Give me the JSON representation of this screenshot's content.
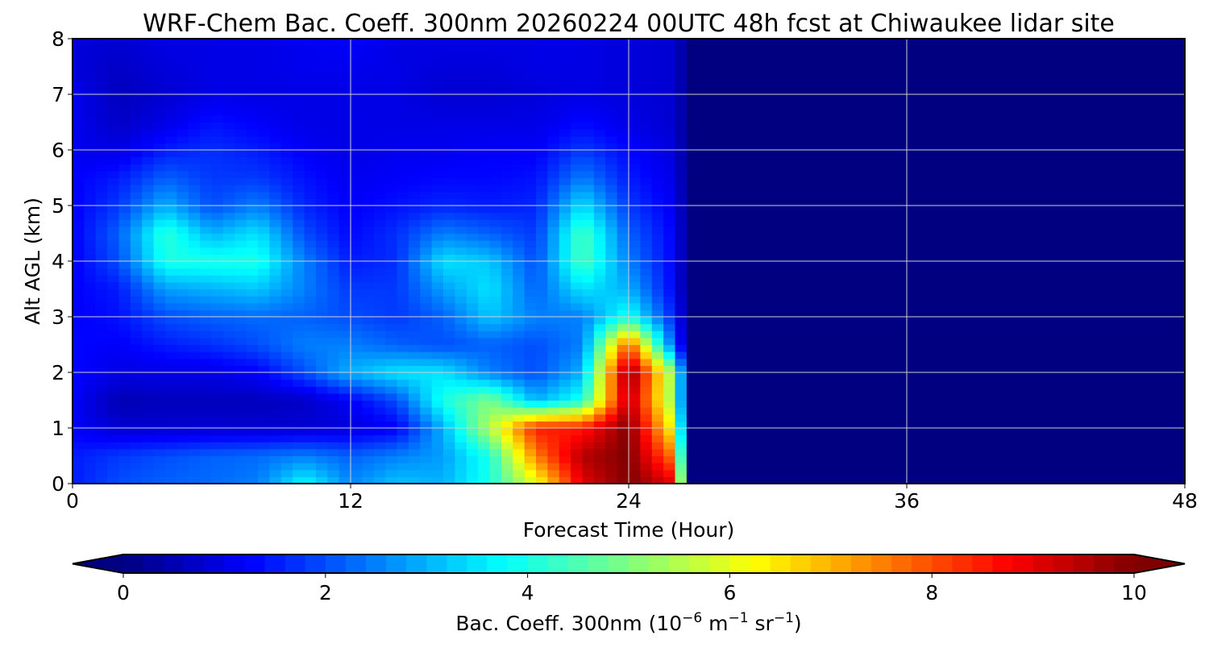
{
  "chart_data": {
    "type": "heatmap",
    "title": "WRF-Chem Bac. Coeff. 300nm  20260224 00UTC 48h fcst at Chiwaukee lidar site",
    "xlabel": "Forecast Time (Hour)",
    "ylabel": "Alt AGL (km)",
    "xlim": [
      0,
      48
    ],
    "ylim": [
      0,
      8
    ],
    "xticks": [
      "0",
      "12",
      "24",
      "36",
      "48"
    ],
    "yticks": [
      "0",
      "1",
      "2",
      "3",
      "4",
      "5",
      "6",
      "7",
      "8"
    ],
    "grid": true,
    "colormap": "jet",
    "colorbar": {
      "label_main": "Bac. Coeff. 300nm  (10",
      "label_exp1": "−6",
      "label_mid": " m",
      "label_exp2": "−1",
      "label_mid2": " sr",
      "label_exp3": "−1",
      "label_end": ")",
      "range": [
        0,
        10
      ],
      "ticks": [
        "0",
        "2",
        "4",
        "6",
        "8",
        "10"
      ],
      "extend": "both",
      "placement": "bottom"
    },
    "x_hours": [
      0,
      2,
      4,
      6,
      8,
      10,
      12,
      14,
      16,
      18,
      20,
      22,
      24,
      26,
      26.6,
      48
    ],
    "y_km": [
      0,
      0.5,
      1,
      1.5,
      2,
      2.5,
      3,
      3.5,
      4,
      4.5,
      5,
      5.5,
      6,
      6.5,
      7,
      7.5,
      8
    ],
    "values": [
      [
        1.5,
        2,
        2.2,
        2.3,
        2.5,
        3.8,
        2.6,
        3.2,
        3,
        4,
        6,
        9,
        10,
        9,
        0,
        0
      ],
      [
        1.5,
        1.8,
        2,
        2.2,
        2.3,
        2.5,
        2.2,
        2.5,
        2.8,
        4,
        7.5,
        9.5,
        10,
        7.5,
        0,
        0
      ],
      [
        1.2,
        0.8,
        0.8,
        0.8,
        0.8,
        0.8,
        0.9,
        1.2,
        3,
        5.5,
        8.5,
        8.5,
        10,
        6,
        0,
        0
      ],
      [
        1.2,
        0.5,
        0.6,
        0.6,
        0.6,
        0.7,
        1.2,
        2,
        4,
        5,
        3,
        4,
        9.5,
        5,
        0,
        0
      ],
      [
        1.3,
        1,
        1,
        1,
        1.2,
        2,
        3,
        3.5,
        3.5,
        2.5,
        2,
        3,
        10,
        5,
        0,
        0
      ],
      [
        1.3,
        1.2,
        1.5,
        1.7,
        2,
        2.5,
        2.5,
        2.2,
        2,
        2.2,
        2,
        2.5,
        8,
        2,
        0,
        0
      ],
      [
        1.2,
        1.4,
        2,
        2.2,
        2.3,
        2.2,
        2,
        1.8,
        2.2,
        3.2,
        2.5,
        2.5,
        4,
        1.5,
        0,
        0
      ],
      [
        1.2,
        1.5,
        2.8,
        3,
        3.2,
        2.5,
        1.8,
        1.8,
        2.8,
        3.5,
        2.2,
        3.5,
        3,
        1.2,
        0,
        0
      ],
      [
        1.2,
        2,
        4,
        4,
        4,
        2.5,
        1.5,
        1.7,
        3.5,
        3.2,
        2,
        4.5,
        2.5,
        1.2,
        0,
        0
      ],
      [
        1.2,
        2.2,
        4.2,
        3,
        3.5,
        2,
        1.3,
        1.7,
        2.5,
        2.2,
        1.8,
        4.5,
        2.2,
        1.2,
        0,
        0
      ],
      [
        1.2,
        1.8,
        3,
        2,
        2.5,
        1.6,
        1.2,
        1.4,
        1.6,
        1.5,
        1.6,
        3.5,
        1.8,
        1.1,
        0,
        0
      ],
      [
        1.2,
        1.5,
        2.2,
        1.8,
        1.8,
        1.4,
        1.1,
        1.2,
        1.3,
        1.3,
        1.4,
        2.5,
        1.5,
        1,
        0,
        0
      ],
      [
        1.1,
        1,
        1.5,
        1.7,
        1.5,
        1.2,
        1,
        1.1,
        1.1,
        1.2,
        1.2,
        1.8,
        1.3,
        0.9,
        0,
        0
      ],
      [
        1.1,
        0.7,
        1,
        1.4,
        1.2,
        1,
        1,
        1,
        1,
        1,
        1,
        1.3,
        1,
        0.8,
        0,
        0
      ],
      [
        1.1,
        0.6,
        0.8,
        1,
        1,
        1,
        1,
        1,
        0.8,
        0.8,
        0.9,
        1,
        0.9,
        0.8,
        0,
        0
      ],
      [
        0.9,
        0.7,
        0.9,
        1,
        1,
        1.1,
        1.1,
        1,
        0.9,
        0.9,
        1,
        1,
        0.9,
        0.8,
        0,
        0
      ],
      [
        0.9,
        0.8,
        1,
        1,
        1,
        1.1,
        1.2,
        1,
        1,
        1,
        1,
        1,
        0.9,
        0.8,
        0,
        0
      ]
    ]
  }
}
